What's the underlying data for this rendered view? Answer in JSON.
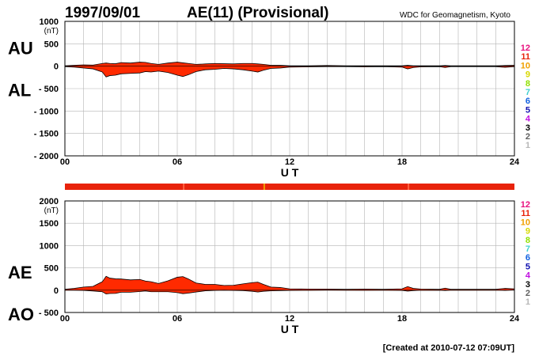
{
  "header": {
    "date": "1997/09/01",
    "title": "AE(11) (Provisional)",
    "source": "WDC for Geomagnetism, Kyoto"
  },
  "footer": {
    "created": "[Created at 2010-07-12 07:09UT]"
  },
  "hour_legend": {
    "labels": [
      "12",
      "11",
      "10",
      "9",
      "8",
      "7",
      "6",
      "5",
      "4",
      "3",
      "2",
      "1"
    ],
    "colors": [
      "#e8127f",
      "#e8230b",
      "#f0a000",
      "#d8d800",
      "#90e000",
      "#40d0d0",
      "#1060e0",
      "#1010b0",
      "#c010e0",
      "#000000",
      "#606060",
      "#b8b8b8"
    ]
  },
  "chart_data": [
    {
      "type": "area",
      "id": "au_al",
      "upper_label": "AU",
      "lower_label": "AL",
      "unit": "(nT)",
      "xlabel": "U T",
      "x_ticks": [
        "00",
        "06",
        "12",
        "18",
        "24"
      ],
      "xlim": [
        0,
        24
      ],
      "ylim": [
        -2000,
        1000
      ],
      "y_ticks": [
        1000,
        500,
        0,
        -500,
        -1000,
        -1500,
        -2000
      ],
      "y_tick_labels": [
        "1000",
        "500",
        "0",
        "- 500",
        "- 1000",
        "- 1500",
        "- 2000"
      ],
      "grid": true,
      "fill_color": "#ff2a00",
      "x": [
        0,
        0.5,
        1,
        1.5,
        2,
        2.2,
        2.4,
        2.7,
        3,
        3.5,
        4,
        4.3,
        4.6,
        5,
        5.5,
        6,
        6.3,
        6.6,
        7,
        7.5,
        8,
        8.5,
        9,
        9.5,
        10,
        10.3,
        10.6,
        11,
        11.5,
        12,
        13,
        14,
        15,
        16,
        17,
        18,
        18.3,
        18.6,
        19,
        20,
        20.3,
        20.6,
        21,
        22,
        23,
        23.5,
        24
      ],
      "upper": [
        10,
        20,
        30,
        25,
        60,
        70,
        60,
        55,
        80,
        70,
        90,
        85,
        60,
        40,
        70,
        90,
        75,
        60,
        40,
        50,
        60,
        55,
        50,
        60,
        60,
        50,
        40,
        20,
        20,
        10,
        10,
        15,
        10,
        10,
        10,
        10,
        20,
        10,
        10,
        10,
        15,
        10,
        10,
        10,
        10,
        15,
        20
      ],
      "lower": [
        -10,
        -20,
        -40,
        -60,
        -130,
        -240,
        -210,
        -200,
        -170,
        -160,
        -150,
        -120,
        -130,
        -110,
        -140,
        -200,
        -230,
        -190,
        -120,
        -80,
        -70,
        -50,
        -60,
        -80,
        -110,
        -130,
        -90,
        -50,
        -40,
        -20,
        -15,
        -10,
        -10,
        -15,
        -10,
        -20,
        -60,
        -30,
        -15,
        -10,
        -30,
        -10,
        -10,
        -10,
        -10,
        -25,
        -10
      ]
    },
    {
      "type": "area",
      "id": "ae_ao",
      "upper_label": "AE",
      "lower_label": "AO",
      "unit": "(nT)",
      "xlabel": "U T",
      "x_ticks": [
        "00",
        "06",
        "12",
        "18",
        "24"
      ],
      "xlim": [
        0,
        24
      ],
      "ylim": [
        -500,
        2000
      ],
      "y_ticks": [
        2000,
        1500,
        1000,
        500,
        0,
        -500
      ],
      "y_tick_labels": [
        "2000",
        "1500",
        "1000",
        "500",
        "0",
        "- 500"
      ],
      "grid": true,
      "fill_color": "#ff2a00",
      "x": [
        0,
        0.5,
        1,
        1.5,
        2,
        2.2,
        2.4,
        2.7,
        3,
        3.5,
        4,
        4.3,
        4.6,
        5,
        5.5,
        6,
        6.3,
        6.6,
        7,
        7.5,
        8,
        8.5,
        9,
        9.5,
        10,
        10.3,
        10.6,
        11,
        11.5,
        12,
        13,
        14,
        15,
        16,
        17,
        18,
        18.3,
        18.6,
        19,
        20,
        20.3,
        20.6,
        21,
        22,
        23,
        23.5,
        24
      ],
      "upper": [
        20,
        40,
        70,
        85,
        190,
        310,
        270,
        255,
        250,
        230,
        240,
        205,
        190,
        150,
        210,
        290,
        305,
        250,
        160,
        130,
        130,
        105,
        110,
        140,
        170,
        180,
        130,
        70,
        60,
        30,
        25,
        25,
        20,
        25,
        20,
        30,
        80,
        40,
        25,
        20,
        45,
        20,
        20,
        20,
        20,
        40,
        30
      ],
      "lower": [
        0,
        0,
        -5,
        -18,
        -35,
        -85,
        -75,
        -72,
        -45,
        -45,
        -30,
        -18,
        -35,
        -35,
        -35,
        -55,
        -78,
        -65,
        -40,
        -15,
        -5,
        0,
        -5,
        -10,
        -25,
        -40,
        -25,
        -15,
        -10,
        -5,
        -2,
        2,
        0,
        -2,
        0,
        -5,
        -20,
        -10,
        -2,
        0,
        -8,
        0,
        0,
        0,
        0,
        -5,
        5
      ]
    }
  ],
  "hour_bar": {
    "base_color": "#e8230b",
    "marks": [
      {
        "hour": 10.6,
        "color": "#f0a000"
      },
      {
        "hour": 6.3,
        "color": "#ff6040"
      },
      {
        "hour": 18.3,
        "color": "#ff6040"
      }
    ]
  }
}
